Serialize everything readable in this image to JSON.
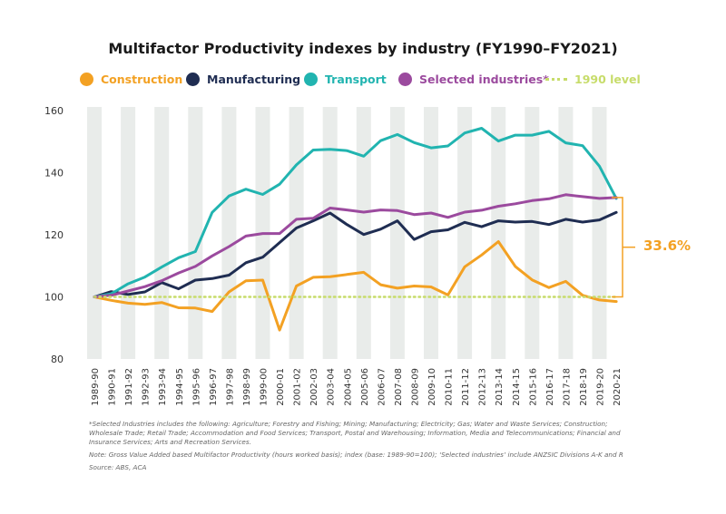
{
  "colors": {
    "construction": "#f3a123",
    "manufacturing": "#1f2d52",
    "transport": "#21b4b0",
    "selected": "#9b4a9e",
    "baseline": "#c7dc6a",
    "band": "#e9ecea",
    "axis_text": "#333333"
  },
  "annotation": {
    "label": "33.6%"
  },
  "notes": {
    "selected_def": "*Selected Industries includes the following: Agriculture; Forestry and Fishing; Mining; Manufacturing; Electricity; Gas; Water and Waste Services; Construction; Wholesale Trade; Retail Trade; Accommodation and Food Services; Transport, Postal and Warehousing; Information, Media and Telecommunications; Financial and Insurance Services; Arts and Recreation Services.",
    "note": "Note: Gross Value Added based Multifactor Productivity (hours worked basis); index (base: 1989-90=100); ‘Selected industries’ include ANZSIC Divisions A-K and R",
    "source": "Source: ABS, ACA"
  },
  "chart_data": {
    "type": "line",
    "title": "Multifactor Productivity indexes by industry (FY1990–FY2021)",
    "xlabel": "",
    "ylabel": "",
    "ylim": [
      80,
      160
    ],
    "yticks": [
      80,
      100,
      120,
      140,
      160
    ],
    "grid": false,
    "legend_position": "top",
    "categories": [
      "1989-90",
      "1990-91",
      "1991-92",
      "1992-93",
      "1993-94",
      "1994-95",
      "1995-96",
      "1996-97",
      "1997-98",
      "1998-99",
      "1999-00",
      "2000-01",
      "2001-02",
      "2002-03",
      "2003-04",
      "2004-05",
      "2005-06",
      "2006-07",
      "2007-08",
      "2008-09",
      "2009-10",
      "2010-11",
      "2011-12",
      "2012-13",
      "2013-14",
      "2014-15",
      "2015-16",
      "2016-17",
      "2017-18",
      "2018-19",
      "2019-20",
      "2020-21"
    ],
    "series": [
      {
        "name": "Construction",
        "key": "construction",
        "values": [
          100.0,
          98.9,
          98.0,
          97.6,
          98.2,
          96.5,
          96.4,
          95.3,
          101.6,
          105.2,
          105.4,
          89.3,
          103.5,
          106.3,
          106.5,
          107.2,
          107.9,
          103.9,
          102.8,
          103.5,
          103.2,
          100.6,
          109.7,
          113.5,
          117.8,
          109.8,
          105.5,
          103.0,
          105.0,
          100.5,
          99.0,
          98.5
        ]
      },
      {
        "name": "Manufacturing",
        "key": "manufacturing",
        "values": [
          100.0,
          101.7,
          100.8,
          101.6,
          104.6,
          102.6,
          105.4,
          105.9,
          107.0,
          111.0,
          112.8,
          117.5,
          122.2,
          124.5,
          127.0,
          123.3,
          120.1,
          121.8,
          124.5,
          118.5,
          121.0,
          121.6,
          124.0,
          122.6,
          124.5,
          124.1,
          124.3,
          123.3,
          125.0,
          124.1,
          124.8,
          127.2
        ]
      },
      {
        "name": "Transport",
        "key": "transport",
        "values": [
          100.0,
          101.0,
          104.2,
          106.4,
          109.6,
          112.6,
          114.6,
          127.2,
          132.5,
          134.7,
          133.0,
          136.3,
          142.5,
          147.3,
          147.5,
          147.1,
          145.3,
          150.3,
          152.3,
          149.7,
          148.0,
          148.6,
          152.8,
          154.3,
          150.2,
          152.1,
          152.1,
          153.3,
          149.6,
          148.7,
          142.1,
          131.7
        ]
      },
      {
        "name": "Selected industries*",
        "key": "selected",
        "values": [
          100.0,
          100.5,
          101.9,
          103.3,
          105.2,
          107.7,
          109.8,
          113.2,
          116.2,
          119.6,
          120.4,
          120.4,
          125.0,
          125.3,
          128.6,
          128.0,
          127.3,
          128.0,
          127.8,
          126.5,
          127.0,
          125.6,
          127.3,
          127.9,
          129.2,
          130.0,
          131.0,
          131.6,
          132.9,
          132.3,
          131.7,
          132.0
        ]
      },
      {
        "name": "1990 level",
        "key": "baseline",
        "style": "dotted",
        "values": [
          100,
          100,
          100,
          100,
          100,
          100,
          100,
          100,
          100,
          100,
          100,
          100,
          100,
          100,
          100,
          100,
          100,
          100,
          100,
          100,
          100,
          100,
          100,
          100,
          100,
          100,
          100,
          100,
          100,
          100,
          100,
          100
        ]
      }
    ]
  }
}
